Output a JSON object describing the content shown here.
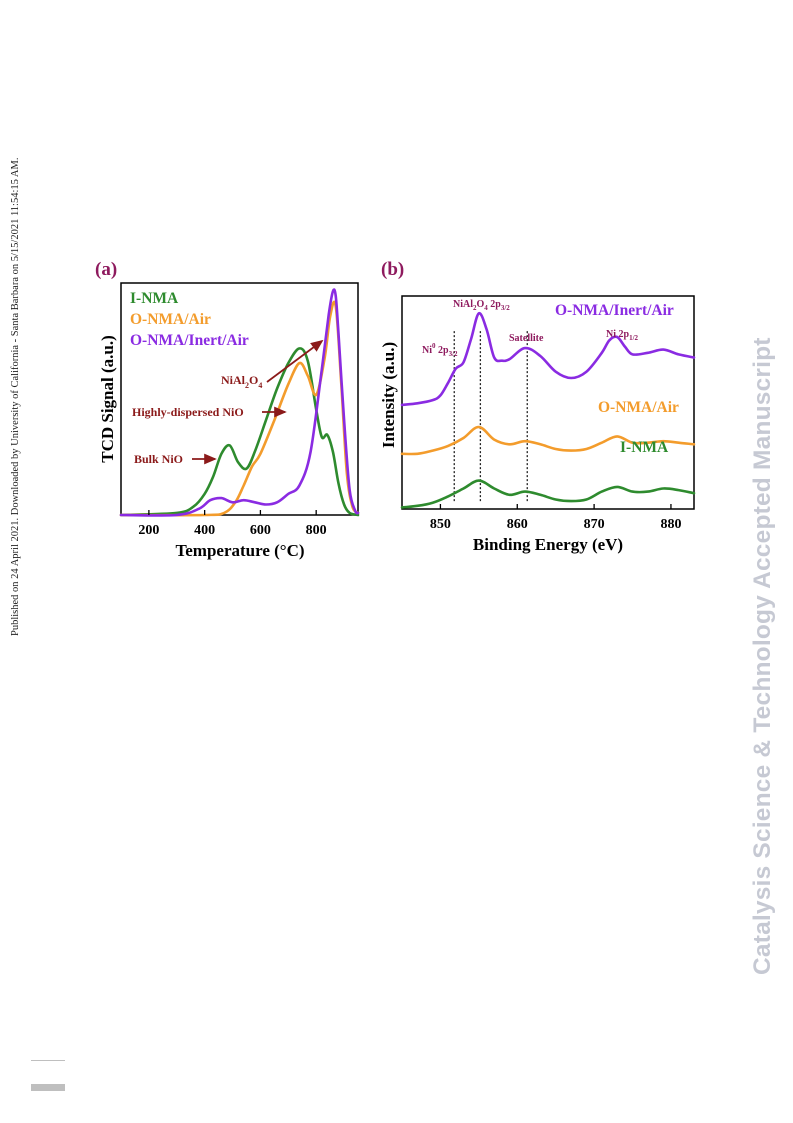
{
  "side_note": "Published on 24 April 2021. Downloaded by University of California - Santa Barbara on 5/15/2021 11:54:15 AM.",
  "watermark": "Catalysis Science & Technology Accepted Manuscript",
  "colors": {
    "green": "#2e8b2e",
    "orange": "#f39c2c",
    "purple": "#8a2be2",
    "maroon": "#8b1a1a",
    "panel_label": "#8e1a5e",
    "annotation_b": "#8e1a5e"
  },
  "panel_a": {
    "label": "(a)",
    "legend": [
      "I-NMA",
      "O-NMA/Air",
      "O-NMA/Inert/Air"
    ],
    "annotations": {
      "bulk": "Bulk NiO",
      "dispersed": "Highly-dispersed NiO",
      "spinel_main": "NiAl",
      "spinel_sub1": "2",
      "spinel_o": "O",
      "spinel_sub2": "4"
    }
  },
  "panel_b": {
    "label": "(b)",
    "series_labels": [
      "O-NMA/Inert/Air",
      "O-NMA/Air",
      "I-NMA"
    ],
    "annotations": {
      "ni0": "Ni",
      "ni0_sup": "0",
      "ni0_tail": " 2p",
      "ni0_sub": "3/2",
      "spinel": "NiAl",
      "spinel_s1": "2",
      "spinel_o": "O",
      "spinel_s2": "4",
      "spinel_tail": " 2p",
      "spinel_sub": "3/2",
      "satellite": "Satellite",
      "ni12": "Ni 2p",
      "ni12_sub": "1/2"
    }
  },
  "chart_data": [
    {
      "type": "line",
      "title": "",
      "xlabel": "Temperature (°C)",
      "ylabel": "TCD Signal (a.u.)",
      "xlim": [
        100,
        950
      ],
      "xticks": [
        200,
        400,
        600,
        800
      ],
      "ylim": [
        0,
        1.1
      ],
      "yticks": [],
      "legend_position": "top-left",
      "series": [
        {
          "name": "I-NMA",
          "color": "#2e8b2e",
          "x": [
            100,
            300,
            360,
            400,
            430,
            460,
            490,
            520,
            550,
            580,
            620,
            660,
            700,
            740,
            770,
            800,
            820,
            840,
            860,
            880,
            900,
            920,
            950
          ],
          "y": [
            0.0,
            0.01,
            0.04,
            0.1,
            0.18,
            0.29,
            0.33,
            0.25,
            0.22,
            0.3,
            0.45,
            0.6,
            0.72,
            0.79,
            0.73,
            0.5,
            0.37,
            0.38,
            0.3,
            0.15,
            0.05,
            0.01,
            0.0
          ]
        },
        {
          "name": "O-NMA/Air",
          "color": "#f39c2c",
          "x": [
            100,
            400,
            470,
            510,
            540,
            570,
            600,
            650,
            700,
            740,
            770,
            800,
            830,
            850,
            870,
            890,
            910,
            930,
            950
          ],
          "y": [
            0.0,
            0.0,
            0.01,
            0.06,
            0.14,
            0.23,
            0.29,
            0.45,
            0.62,
            0.72,
            0.66,
            0.57,
            0.74,
            0.94,
            0.99,
            0.62,
            0.2,
            0.04,
            0.01
          ]
        },
        {
          "name": "O-NMA/Inert/Air",
          "color": "#8a2be2",
          "x": [
            100,
            300,
            380,
            420,
            460,
            500,
            540,
            580,
            620,
            660,
            700,
            740,
            780,
            820,
            845,
            860,
            870,
            880,
            900,
            920,
            940,
            950
          ],
          "y": [
            0.0,
            0.0,
            0.03,
            0.07,
            0.08,
            0.06,
            0.07,
            0.06,
            0.05,
            0.06,
            0.1,
            0.14,
            0.3,
            0.69,
            0.95,
            1.06,
            1.04,
            0.86,
            0.45,
            0.12,
            0.02,
            0.01
          ]
        }
      ]
    },
    {
      "type": "line",
      "title": "",
      "xlabel": "Binding Energy (eV)",
      "ylabel": "Intensity (a.u.)",
      "xlim": [
        845,
        883
      ],
      "xticks": [
        850,
        860,
        870,
        880
      ],
      "ylim": [
        0,
        1.35
      ],
      "yticks": [],
      "reference_lines_x": [
        851.8,
        855.2,
        861.3
      ],
      "series": [
        {
          "name": "I-NMA",
          "color": "#2e8b2e",
          "x": [
            845,
            847,
            849,
            851,
            853,
            855,
            857,
            859,
            861,
            863,
            865,
            867,
            869,
            871,
            873,
            875,
            877,
            879,
            881,
            883
          ],
          "y": [
            0.01,
            0.02,
            0.04,
            0.08,
            0.13,
            0.18,
            0.13,
            0.09,
            0.11,
            0.09,
            0.06,
            0.05,
            0.06,
            0.11,
            0.14,
            0.11,
            0.11,
            0.13,
            0.12,
            0.1
          ]
        },
        {
          "name": "O-NMA/Air",
          "color": "#f39c2c",
          "x": [
            845,
            847,
            849,
            851,
            853,
            855,
            857,
            859,
            861,
            863,
            865,
            867,
            869,
            871,
            873,
            875,
            877,
            879,
            881,
            883
          ],
          "y": [
            0.35,
            0.35,
            0.37,
            0.4,
            0.45,
            0.52,
            0.44,
            0.41,
            0.43,
            0.41,
            0.38,
            0.37,
            0.38,
            0.42,
            0.46,
            0.42,
            0.42,
            0.43,
            0.42,
            0.41
          ]
        },
        {
          "name": "O-NMA/Inert/Air",
          "color": "#8a2be2",
          "x": [
            845,
            847,
            849,
            850,
            851,
            852,
            853,
            854,
            855,
            856,
            857,
            858,
            859,
            861,
            863,
            865,
            867,
            869,
            871,
            872,
            873,
            874,
            875,
            877,
            879,
            881,
            883
          ],
          "y": [
            0.66,
            0.67,
            0.69,
            0.72,
            0.8,
            0.89,
            0.93,
            1.08,
            1.24,
            1.14,
            0.96,
            0.94,
            0.95,
            1.02,
            0.97,
            0.87,
            0.83,
            0.87,
            0.99,
            1.07,
            1.09,
            1.03,
            0.98,
            0.99,
            1.01,
            0.98,
            0.96
          ]
        }
      ]
    }
  ]
}
